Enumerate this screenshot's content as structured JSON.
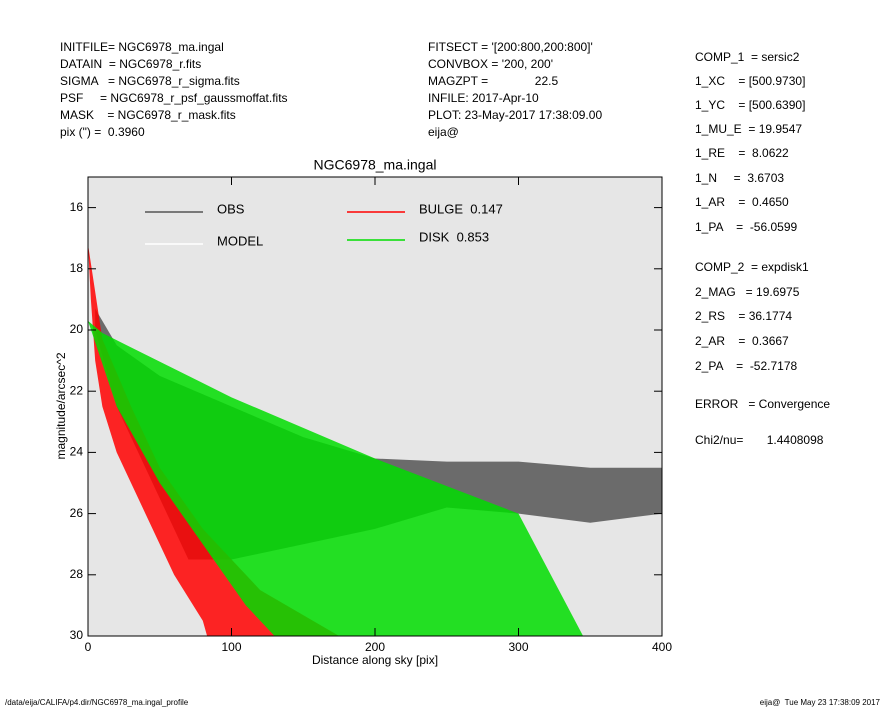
{
  "header": {
    "left": [
      "INITFILE= NGC6978_ma.ingal",
      "DATAIN  = NGC6978_r.fits",
      "SIGMA   = NGC6978_r_sigma.fits",
      "PSF     = NGC6978_r_psf_gaussmoffat.fits",
      "MASK    = NGC6978_r_mask.fits",
      "pix (\") =  0.3960"
    ],
    "middle": [
      "FITSECT = '[200:800,200:800]'",
      "CONVBOX = '200, 200'",
      "MAGZPT =              22.5",
      "INFILE: 2017-Apr-10",
      "PLOT: 23-May-2017 17:38:09.00",
      "eija@"
    ],
    "right": [
      "COMP_1  = sersic2",
      "1_XC    = [500.9730]",
      "1_YC    = [500.6390]",
      "1_MU_E  = 19.9547",
      "1_RE    =  8.0622",
      "1_N     =  3.6703",
      "1_AR    =  0.4650",
      "1_PA    =  -56.0599",
      "COMP_2  = expdisk1",
      "2_MAG   = 19.6975",
      "2_RS    = 36.1774",
      "2_AR    =  0.3667",
      "2_PA    =  -52.7178",
      "ERROR   = Convergence",
      "Chi2/nu=       1.4408098"
    ]
  },
  "footer": {
    "left": "/data/eija/CALIFA/p4.dir/NGC6978_ma.ingal_profile",
    "right": "eija@  Tue May 23 17:38:09 2017"
  },
  "chart_data": {
    "type": "area",
    "title": "NGC6978_ma.ingal",
    "xlabel": "Distance along sky [pix]",
    "ylabel": "magnitude/arcsec^2",
    "xlim": [
      0,
      400
    ],
    "ylim": [
      30,
      15
    ],
    "xticks": [
      0,
      100,
      200,
      300,
      400
    ],
    "yticks": [
      16,
      18,
      20,
      22,
      24,
      26,
      28,
      30
    ],
    "background": "#e6e6e6",
    "series": [
      {
        "name": "OBS",
        "color": "#555555",
        "x": [
          5,
          20,
          50,
          100,
          150,
          200,
          250,
          300,
          350,
          400,
          400,
          350,
          300,
          250,
          200,
          150,
          100,
          70,
          40,
          20,
          5
        ],
        "values": [
          19.3,
          20.5,
          21.5,
          22.5,
          23.5,
          24.2,
          24.3,
          24.3,
          24.5,
          24.5,
          26,
          26.3,
          26,
          25.8,
          26.5,
          27,
          27.5,
          27.5,
          24.5,
          22.5,
          20
        ]
      },
      {
        "name": "MODEL",
        "color": "#ffffff",
        "x": [],
        "values": []
      },
      {
        "name": "BULGE  0.147",
        "color": "#ff0000",
        "x": [
          0,
          10,
          30,
          50,
          80,
          120,
          175,
          83,
          80,
          60,
          40,
          20,
          10,
          5,
          2
        ],
        "values": [
          17.2,
          20.3,
          22.5,
          24.5,
          26.5,
          28.5,
          30,
          30,
          29.5,
          28,
          26,
          24,
          22.5,
          21,
          19
        ]
      },
      {
        "name": "DISK  0.853",
        "color": "#00dd00",
        "x": [
          0,
          10,
          100,
          200,
          300,
          345,
          130,
          110,
          80,
          50,
          20
        ],
        "values": [
          19.7,
          20.1,
          22.2,
          24.2,
          26,
          30,
          30,
          29,
          27,
          25,
          22.5
        ]
      }
    ]
  }
}
